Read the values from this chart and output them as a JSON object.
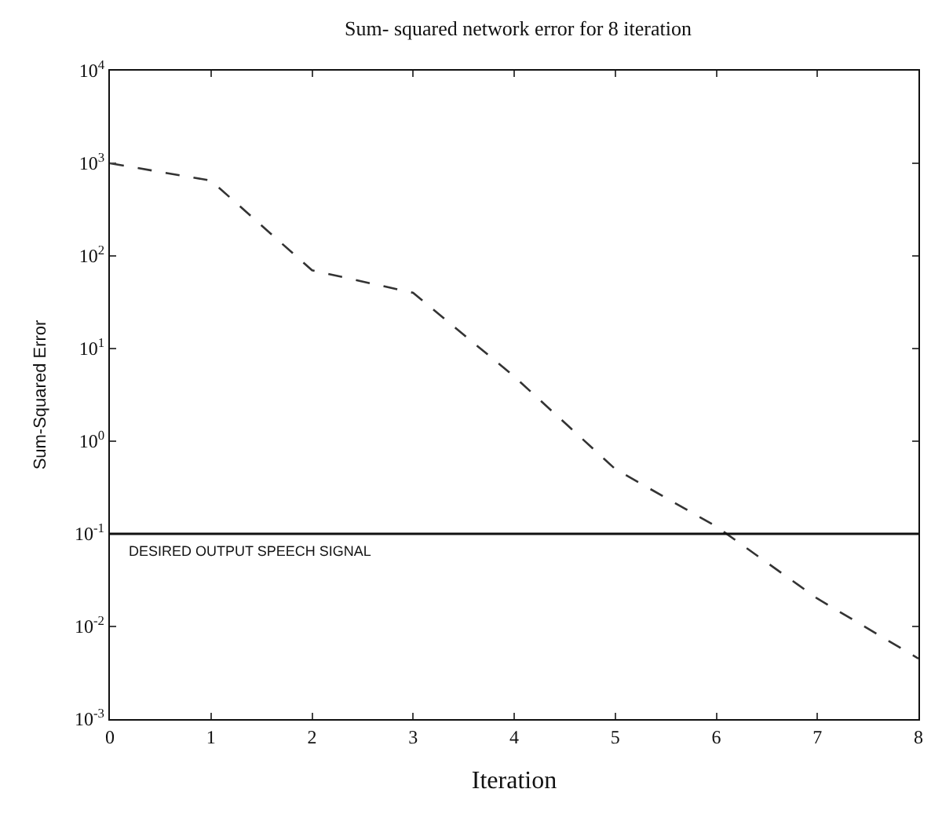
{
  "chart_data": {
    "type": "line",
    "title": "Sum- squared network error for 8 iteration",
    "xlabel": "Iteration",
    "ylabel": "Sum-Squared Error",
    "x": [
      0,
      1,
      2,
      3,
      4,
      5,
      6,
      7,
      8
    ],
    "series": [
      {
        "color": "#333333",
        "values": [
          1000,
          650,
          70,
          40,
          5,
          0.5,
          0.12,
          0.02,
          0.0045
        ]
      }
    ],
    "log": "y",
    "line_style": "dashed",
    "marker": "none",
    "xlim": [
      0,
      8
    ],
    "xticks": [
      0,
      1,
      2,
      3,
      4,
      5,
      6,
      7,
      8
    ],
    "ylim": [
      0.001,
      10000
    ],
    "yticks": [
      {
        "value": 0.001,
        "label": "10$^{-3}$"
      },
      {
        "value": 0.01,
        "label": "10$^{-2}$"
      },
      {
        "value": 0.1,
        "label": "10$^{-1}$"
      },
      {
        "value": 1,
        "label": "10$^{0}$"
      },
      {
        "value": 10,
        "label": "10$^{1}$"
      },
      {
        "value": 100,
        "label": "10$^{2}$"
      },
      {
        "value": 1000,
        "label": "10$^{3}$"
      },
      {
        "value": 10000,
        "label": "10$^{4}$"
      }
    ],
    "ref_lines": [
      {
        "axis": "y",
        "value": 0.1,
        "label": "DESIRED OUTPUT SPEECH SIGNAL",
        "color": "#111111",
        "line_style": "solid"
      }
    ]
  }
}
